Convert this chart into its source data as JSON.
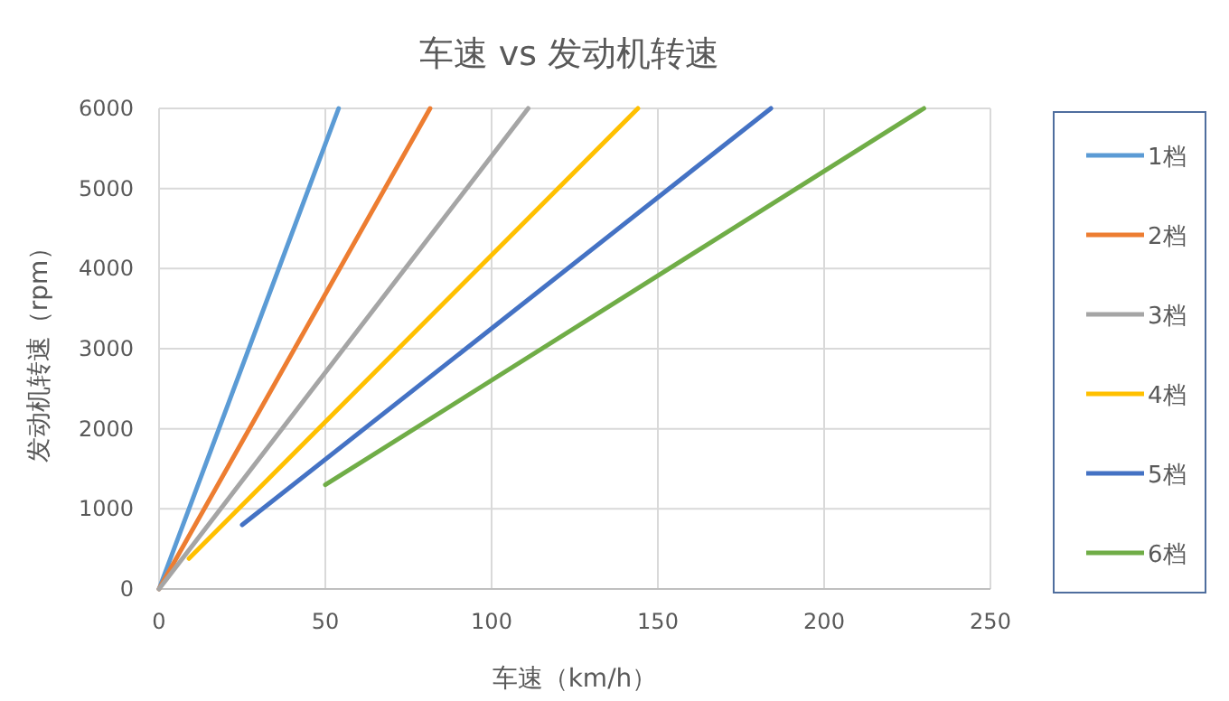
{
  "chart_data": {
    "type": "line",
    "title": "车速 vs 发动机转速",
    "xlabel": "车速（km/h）",
    "ylabel": "发动机转速（rpm）",
    "xlim": [
      0,
      250
    ],
    "xticks": [
      0,
      50,
      100,
      150,
      200,
      250
    ],
    "ylim": [
      0,
      6000
    ],
    "yticks": [
      0,
      1000,
      2000,
      3000,
      4000,
      5000,
      6000
    ],
    "grid": true,
    "legend": "right",
    "series": [
      {
        "name": "1档",
        "color": "#5b9bd5",
        "x": [
          0,
          54
        ],
        "values": [
          0,
          6000
        ]
      },
      {
        "name": "2档",
        "color": "#ed7d31",
        "x": [
          0,
          81.5
        ],
        "values": [
          0,
          6000
        ]
      },
      {
        "name": "3档",
        "color": "#a5a5a5",
        "x": [
          0,
          111
        ],
        "values": [
          0,
          6000
        ]
      },
      {
        "name": "4档",
        "color": "#ffc000",
        "x": [
          9,
          144
        ],
        "values": [
          380,
          6000
        ]
      },
      {
        "name": "5档",
        "color": "#4472c4",
        "x": [
          25,
          184
        ],
        "values": [
          800,
          6000
        ]
      },
      {
        "name": "6档",
        "color": "#70ad47",
        "x": [
          50,
          230
        ],
        "values": [
          1300,
          6000
        ]
      }
    ]
  }
}
